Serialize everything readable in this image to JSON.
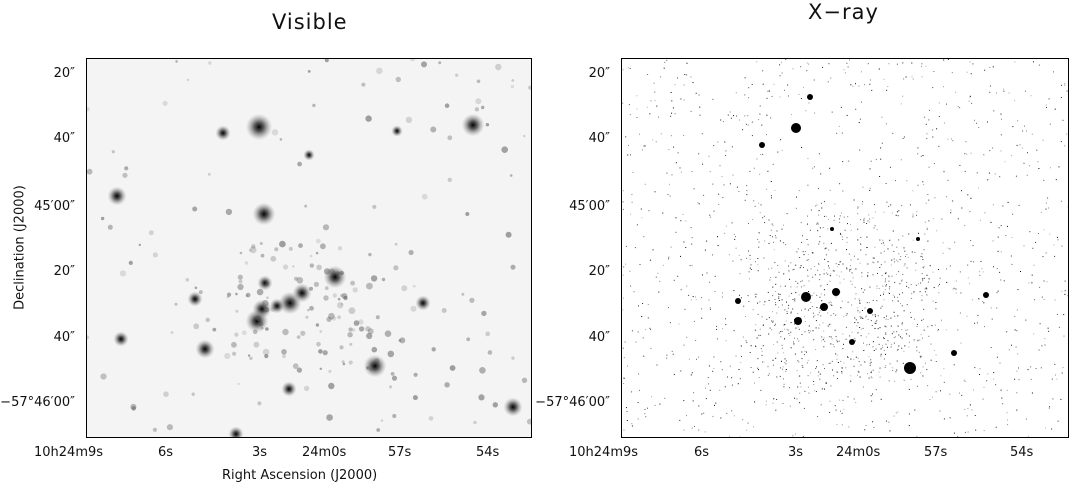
{
  "panels": [
    {
      "id": "visible",
      "title": "Visible"
    },
    {
      "id": "xray",
      "title": "X−ray"
    }
  ],
  "axes": {
    "xlabel": "Right Ascension (J2000)",
    "ylabel": "Declination (J2000)",
    "y_ticks": [
      "20″",
      "40″",
      "45′00″",
      "20″",
      "40″",
      "−57°46′00″"
    ],
    "x_ticks": [
      "10h24m9s",
      "6s",
      "3s",
      "24m0s",
      "57s",
      "54s"
    ]
  },
  "colors": {
    "background": "#ffffff",
    "star": "#000000",
    "frame": "#000000"
  }
}
